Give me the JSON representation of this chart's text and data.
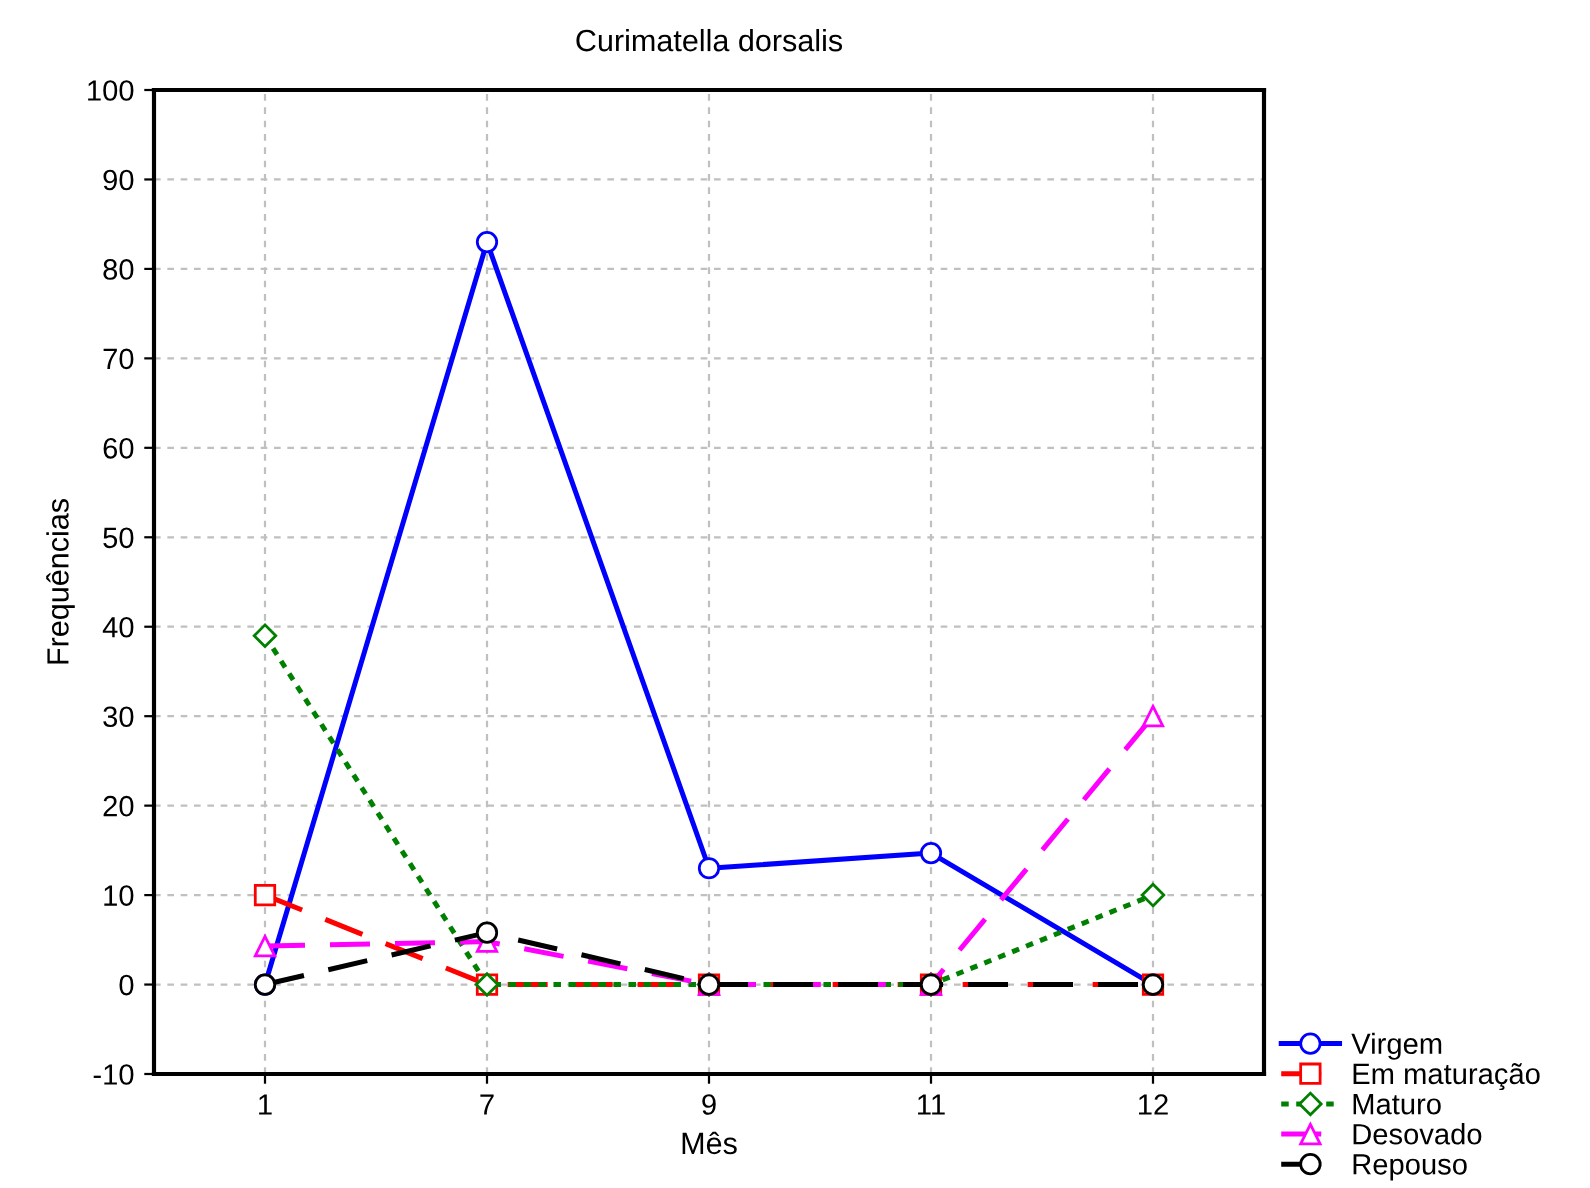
{
  "chart_data": {
    "type": "line",
    "title": "Curimatella dorsalis",
    "xlabel": "Mês",
    "ylabel": "Frequências",
    "categories": [
      "1",
      "7",
      "9",
      "11",
      "12"
    ],
    "series": [
      {
        "name": "Virgem",
        "color": "#0000ff",
        "values": [
          0,
          83,
          13,
          14.7,
          0
        ],
        "marker": "circle",
        "line_style": "solid"
      },
      {
        "name": "Em maturação",
        "color": "#ff0000",
        "values": [
          10,
          0,
          0,
          0,
          0
        ],
        "marker": "square",
        "line_style": "dashed"
      },
      {
        "name": "Maturo",
        "color": "#008000",
        "values": [
          39,
          0,
          0,
          0,
          10
        ],
        "marker": "diamond",
        "line_style": "dotted"
      },
      {
        "name": "Desovado",
        "color": "#ff00ff",
        "values": [
          4.3,
          4.8,
          0,
          0,
          30
        ],
        "marker": "triangle",
        "line_style": "dashed"
      },
      {
        "name": "Repouso",
        "color": "#000000",
        "values": [
          0,
          5.8,
          0,
          0,
          0
        ],
        "marker": "circle",
        "line_style": "dashed"
      }
    ],
    "ylim": [
      -10,
      100
    ],
    "yticks": [
      -10,
      0,
      10,
      20,
      30,
      40,
      50,
      60,
      70,
      80,
      90,
      100
    ],
    "grid": true,
    "legend": "bottom right"
  }
}
